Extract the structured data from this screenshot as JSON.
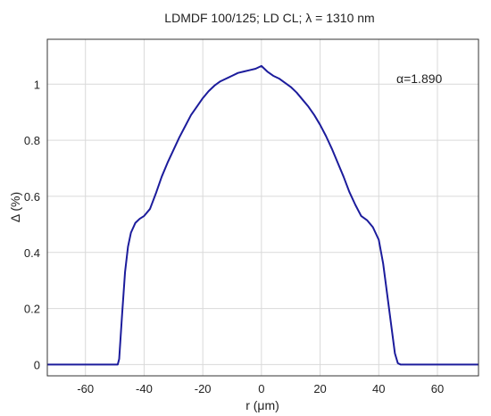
{
  "chart_data": {
    "type": "line",
    "title": "LDMDF 100/125; LD CL; λ = 1310 nm",
    "xlabel": "r (μm)",
    "ylabel": "Δ (%)",
    "xlim": [
      -73,
      74
    ],
    "ylim": [
      -0.04,
      1.16
    ],
    "xticks": [
      -60,
      -40,
      -20,
      0,
      20,
      40,
      60
    ],
    "yticks": [
      0,
      0.2,
      0.4,
      0.6,
      0.8,
      1
    ],
    "ytick_labels": [
      "0",
      "0.2",
      "0.4",
      "0.6",
      "0.8",
      "1"
    ],
    "grid": true,
    "annotation": "α=1.890",
    "line_color": "#1c1c9c",
    "series": [
      {
        "x": [
          -73,
          -49,
          -48.5,
          -47.5,
          -46.5,
          -45.5,
          -44.5,
          -43,
          -41.5,
          -40,
          -38,
          -36,
          -34,
          -32,
          -30,
          -28,
          -26,
          -24,
          -22,
          -20,
          -18,
          -16,
          -14,
          -12,
          -10,
          -8,
          -6,
          -4,
          -2,
          0,
          2,
          4,
          6,
          8,
          10,
          12,
          14,
          16,
          18,
          20,
          22,
          24,
          26,
          28,
          30,
          32,
          34,
          36,
          38,
          40,
          41.5,
          43,
          44.5,
          45.5,
          46.5,
          47.5,
          48.5,
          49,
          74
        ],
        "y": [
          0,
          0,
          0.02,
          0.18,
          0.33,
          0.42,
          0.47,
          0.505,
          0.52,
          0.53,
          0.555,
          0.61,
          0.67,
          0.72,
          0.765,
          0.81,
          0.85,
          0.89,
          0.92,
          0.95,
          0.975,
          0.995,
          1.01,
          1.02,
          1.03,
          1.04,
          1.045,
          1.05,
          1.055,
          1.065,
          1.045,
          1.03,
          1.02,
          1.005,
          0.99,
          0.97,
          0.945,
          0.92,
          0.89,
          0.855,
          0.815,
          0.77,
          0.72,
          0.67,
          0.615,
          0.57,
          0.53,
          0.515,
          0.49,
          0.445,
          0.36,
          0.24,
          0.12,
          0.04,
          0.005,
          0,
          0,
          0,
          0
        ]
      }
    ]
  }
}
